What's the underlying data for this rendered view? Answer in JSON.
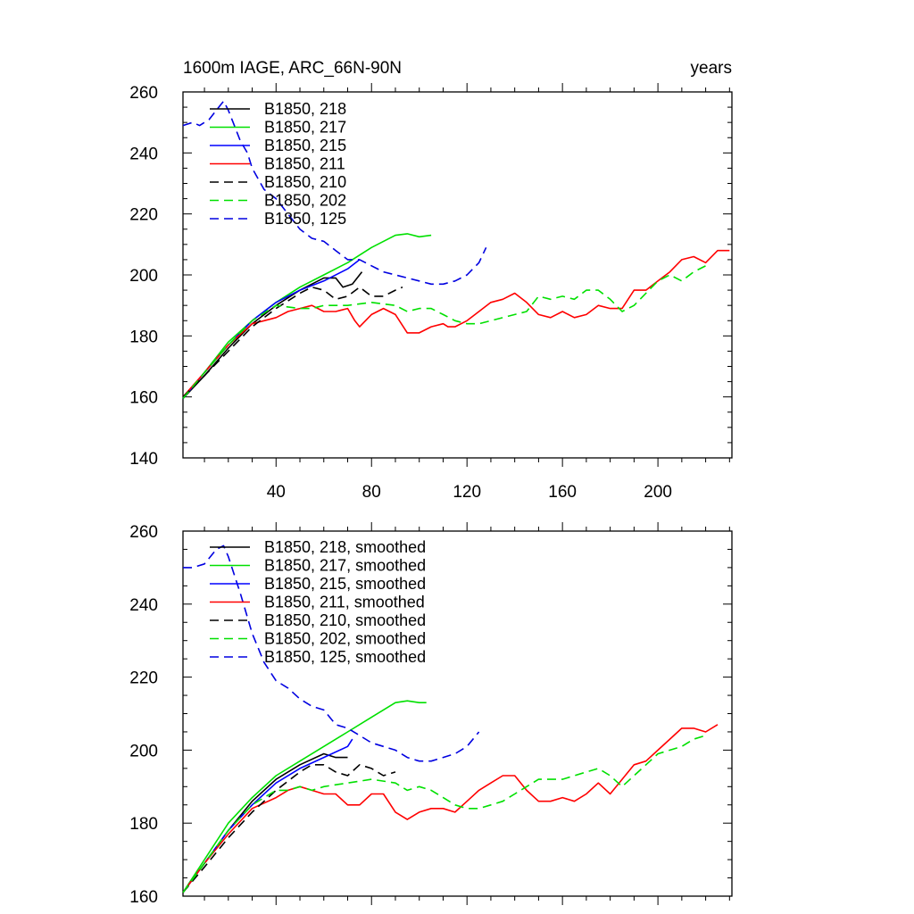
{
  "title_left": "1600m IAGE, ARC_66N-90N",
  "title_right": "years",
  "colors": {
    "black": "#000000",
    "green": "#00e000",
    "blue": "#0000ff",
    "red": "#ff0000",
    "dash_blue": "#0000e0"
  },
  "chart_data": [
    {
      "type": "line",
      "title": "1600m IAGE, ARC_66N-90N",
      "xlabel": "",
      "ylabel": "",
      "subtitle_right": "years",
      "xlim": [
        1,
        231
      ],
      "ylim": [
        140,
        260
      ],
      "xticks": [
        40,
        80,
        120,
        160,
        200
      ],
      "xtick_labels": [
        "40",
        "80",
        "120",
        "160",
        "200"
      ],
      "yticks": [
        140,
        160,
        180,
        200,
        220,
        240,
        260
      ],
      "ytick_labels": [
        "140",
        "160",
        "180",
        "200",
        "220",
        "240",
        "260"
      ],
      "grid": false,
      "legend_position": "top-left",
      "series": [
        {
          "name": "B1850, 218",
          "color": "#000000",
          "dash": false,
          "x": [
            1,
            10,
            20,
            30,
            40,
            50,
            60,
            65,
            68,
            72,
            76
          ],
          "y": [
            159.5,
            167,
            176,
            184,
            190,
            195,
            199,
            199,
            196,
            197,
            201
          ]
        },
        {
          "name": "B1850, 217",
          "color": "#00e000",
          "dash": false,
          "x": [
            1,
            10,
            20,
            30,
            40,
            50,
            60,
            70,
            80,
            90,
            95,
            100,
            105
          ],
          "y": [
            159.5,
            168,
            178,
            185,
            191,
            196,
            200,
            204,
            209,
            213,
            213.5,
            212.5,
            213
          ]
        },
        {
          "name": "B1850, 215",
          "color": "#0000ff",
          "dash": false,
          "x": [
            1,
            10,
            20,
            30,
            40,
            50,
            60,
            70,
            75
          ],
          "y": [
            159.5,
            168,
            177,
            185,
            191,
            195,
            198,
            202,
            205
          ]
        },
        {
          "name": "B1850, 211",
          "color": "#ff0000",
          "dash": false,
          "x": [
            1,
            10,
            20,
            30,
            35,
            40,
            45,
            50,
            55,
            60,
            65,
            70,
            73,
            75,
            80,
            85,
            90,
            95,
            100,
            105,
            110,
            112,
            115,
            120,
            125,
            130,
            135,
            140,
            145,
            150,
            155,
            160,
            165,
            170,
            175,
            180,
            185,
            190,
            195,
            200,
            205,
            210,
            215,
            220,
            225,
            230
          ],
          "y": [
            160,
            168,
            177,
            184,
            185,
            186,
            188,
            189,
            190,
            188,
            188,
            189,
            185,
            183,
            187,
            189,
            187,
            181,
            181,
            183,
            184,
            183,
            183,
            185,
            188,
            191,
            192,
            194,
            191,
            187,
            186,
            188,
            186,
            187,
            190,
            189,
            189,
            195,
            195,
            198,
            201,
            205,
            206,
            204,
            208,
            208
          ]
        },
        {
          "name": "B1850, 210",
          "color": "#000000",
          "dash": true,
          "x": [
            1,
            10,
            20,
            30,
            40,
            50,
            55,
            60,
            65,
            70,
            75,
            80,
            85,
            90,
            93
          ],
          "y": [
            160,
            167,
            175,
            183,
            189,
            194,
            196,
            195,
            192,
            193,
            196,
            193,
            193,
            195,
            196
          ]
        },
        {
          "name": "B1850, 202",
          "color": "#00e000",
          "dash": true,
          "x": [
            1,
            10,
            20,
            30,
            40,
            50,
            55,
            60,
            65,
            70,
            80,
            90,
            95,
            100,
            105,
            110,
            115,
            120,
            125,
            130,
            135,
            140,
            145,
            150,
            155,
            160,
            165,
            170,
            175,
            180,
            185,
            190,
            195,
            200,
            205,
            210,
            215,
            220
          ],
          "y": [
            159.5,
            168,
            177,
            185,
            190,
            189,
            189,
            190,
            190,
            190,
            191,
            190,
            188,
            189,
            189,
            187,
            185,
            184,
            184,
            185,
            186,
            187,
            188,
            193,
            192,
            193,
            192,
            195,
            195,
            192,
            188,
            190,
            194,
            198,
            200,
            198,
            201,
            203
          ]
        },
        {
          "name": "B1850, 125",
          "color": "#0000e0",
          "dash": true,
          "x": [
            1,
            5,
            8,
            12,
            15,
            18,
            20,
            22,
            25,
            28,
            30,
            35,
            40,
            45,
            50,
            55,
            60,
            65,
            70,
            75,
            80,
            85,
            90,
            95,
            100,
            105,
            110,
            115,
            120,
            125,
            128
          ],
          "y": [
            249,
            250,
            249,
            251,
            254,
            257,
            254,
            250,
            244,
            240,
            235,
            228,
            225,
            220,
            215,
            212,
            211,
            208,
            205,
            205,
            203,
            201,
            200,
            199,
            198,
            197,
            197,
            198,
            200,
            204,
            209
          ]
        }
      ]
    },
    {
      "type": "line",
      "title": "",
      "xlabel": "",
      "ylabel": "",
      "xlim": [
        1,
        231
      ],
      "ylim": [
        160,
        260
      ],
      "xticks": [
        40,
        80,
        120,
        160,
        200
      ],
      "yticks": [
        160,
        180,
        200,
        220,
        240,
        260
      ],
      "ytick_labels": [
        "160",
        "180",
        "200",
        "220",
        "240",
        "260"
      ],
      "grid": false,
      "legend_position": "top-left",
      "series": [
        {
          "name": "B1850, 218, smoothed",
          "color": "#000000",
          "dash": false,
          "x": [
            1,
            10,
            20,
            30,
            40,
            50,
            60,
            65,
            70
          ],
          "y": [
            161,
            169,
            178,
            186,
            192,
            196,
            199,
            198,
            198
          ]
        },
        {
          "name": "B1850, 217, smoothed",
          "color": "#00e000",
          "dash": false,
          "x": [
            1,
            10,
            20,
            30,
            40,
            50,
            60,
            70,
            80,
            90,
            95,
            100,
            103
          ],
          "y": [
            161,
            170,
            180,
            187,
            193,
            197,
            201,
            205,
            209,
            213,
            213.5,
            213,
            213
          ]
        },
        {
          "name": "B1850, 215, smoothed",
          "color": "#0000ff",
          "dash": false,
          "x": [
            1,
            10,
            20,
            30,
            40,
            50,
            60,
            70,
            72
          ],
          "y": [
            161,
            169,
            178,
            185,
            191,
            195,
            198,
            201,
            203
          ]
        },
        {
          "name": "B1850, 211, smoothed",
          "color": "#ff0000",
          "dash": false,
          "x": [
            1,
            10,
            20,
            30,
            40,
            45,
            50,
            55,
            60,
            65,
            70,
            75,
            80,
            85,
            90,
            95,
            100,
            105,
            110,
            115,
            120,
            125,
            130,
            135,
            140,
            145,
            150,
            155,
            160,
            165,
            170,
            175,
            180,
            185,
            190,
            195,
            200,
            205,
            210,
            215,
            220,
            225
          ],
          "y": [
            161,
            169,
            177,
            184,
            187,
            189,
            190,
            189,
            188,
            188,
            185,
            185,
            188,
            188,
            183,
            181,
            183,
            184,
            184,
            183,
            186,
            189,
            191,
            193,
            193,
            189,
            186,
            186,
            187,
            186,
            188,
            191,
            188,
            192,
            196,
            197,
            200,
            203,
            206,
            206,
            205,
            207
          ]
        },
        {
          "name": "B1850, 210, smoothed",
          "color": "#000000",
          "dash": true,
          "x": [
            1,
            10,
            20,
            30,
            40,
            50,
            55,
            60,
            65,
            70,
            75,
            80,
            85,
            90
          ],
          "y": [
            161,
            168,
            176,
            183,
            189,
            194,
            196,
            196,
            194,
            193,
            196,
            195,
            193,
            194
          ]
        },
        {
          "name": "B1850, 202, smoothed",
          "color": "#00e000",
          "dash": true,
          "x": [
            1,
            10,
            20,
            30,
            40,
            45,
            50,
            55,
            60,
            70,
            80,
            90,
            95,
            100,
            105,
            110,
            115,
            120,
            125,
            130,
            135,
            140,
            145,
            150,
            155,
            160,
            165,
            170,
            175,
            180,
            185,
            190,
            195,
            200,
            205,
            210,
            215,
            220
          ],
          "y": [
            161,
            169,
            178,
            185,
            189,
            189,
            190,
            189,
            190,
            191,
            192,
            191,
            189,
            190,
            189,
            187,
            185,
            184,
            184,
            185,
            186,
            188,
            190,
            192,
            192,
            192,
            193,
            194,
            195,
            193,
            190,
            193,
            196,
            199,
            200,
            201,
            203,
            204
          ]
        },
        {
          "name": "B1850, 125, smoothed",
          "color": "#0000e0",
          "dash": true,
          "x": [
            1,
            5,
            10,
            15,
            18,
            20,
            25,
            30,
            35,
            40,
            45,
            50,
            55,
            60,
            65,
            70,
            75,
            80,
            85,
            90,
            95,
            100,
            105,
            110,
            115,
            120,
            125
          ],
          "y": [
            250,
            250,
            251,
            255,
            256,
            253,
            243,
            232,
            224,
            219,
            217,
            214,
            212,
            211,
            207,
            206,
            204,
            202,
            201,
            200,
            198,
            197,
            197,
            198,
            199,
            201,
            205
          ]
        }
      ]
    }
  ]
}
